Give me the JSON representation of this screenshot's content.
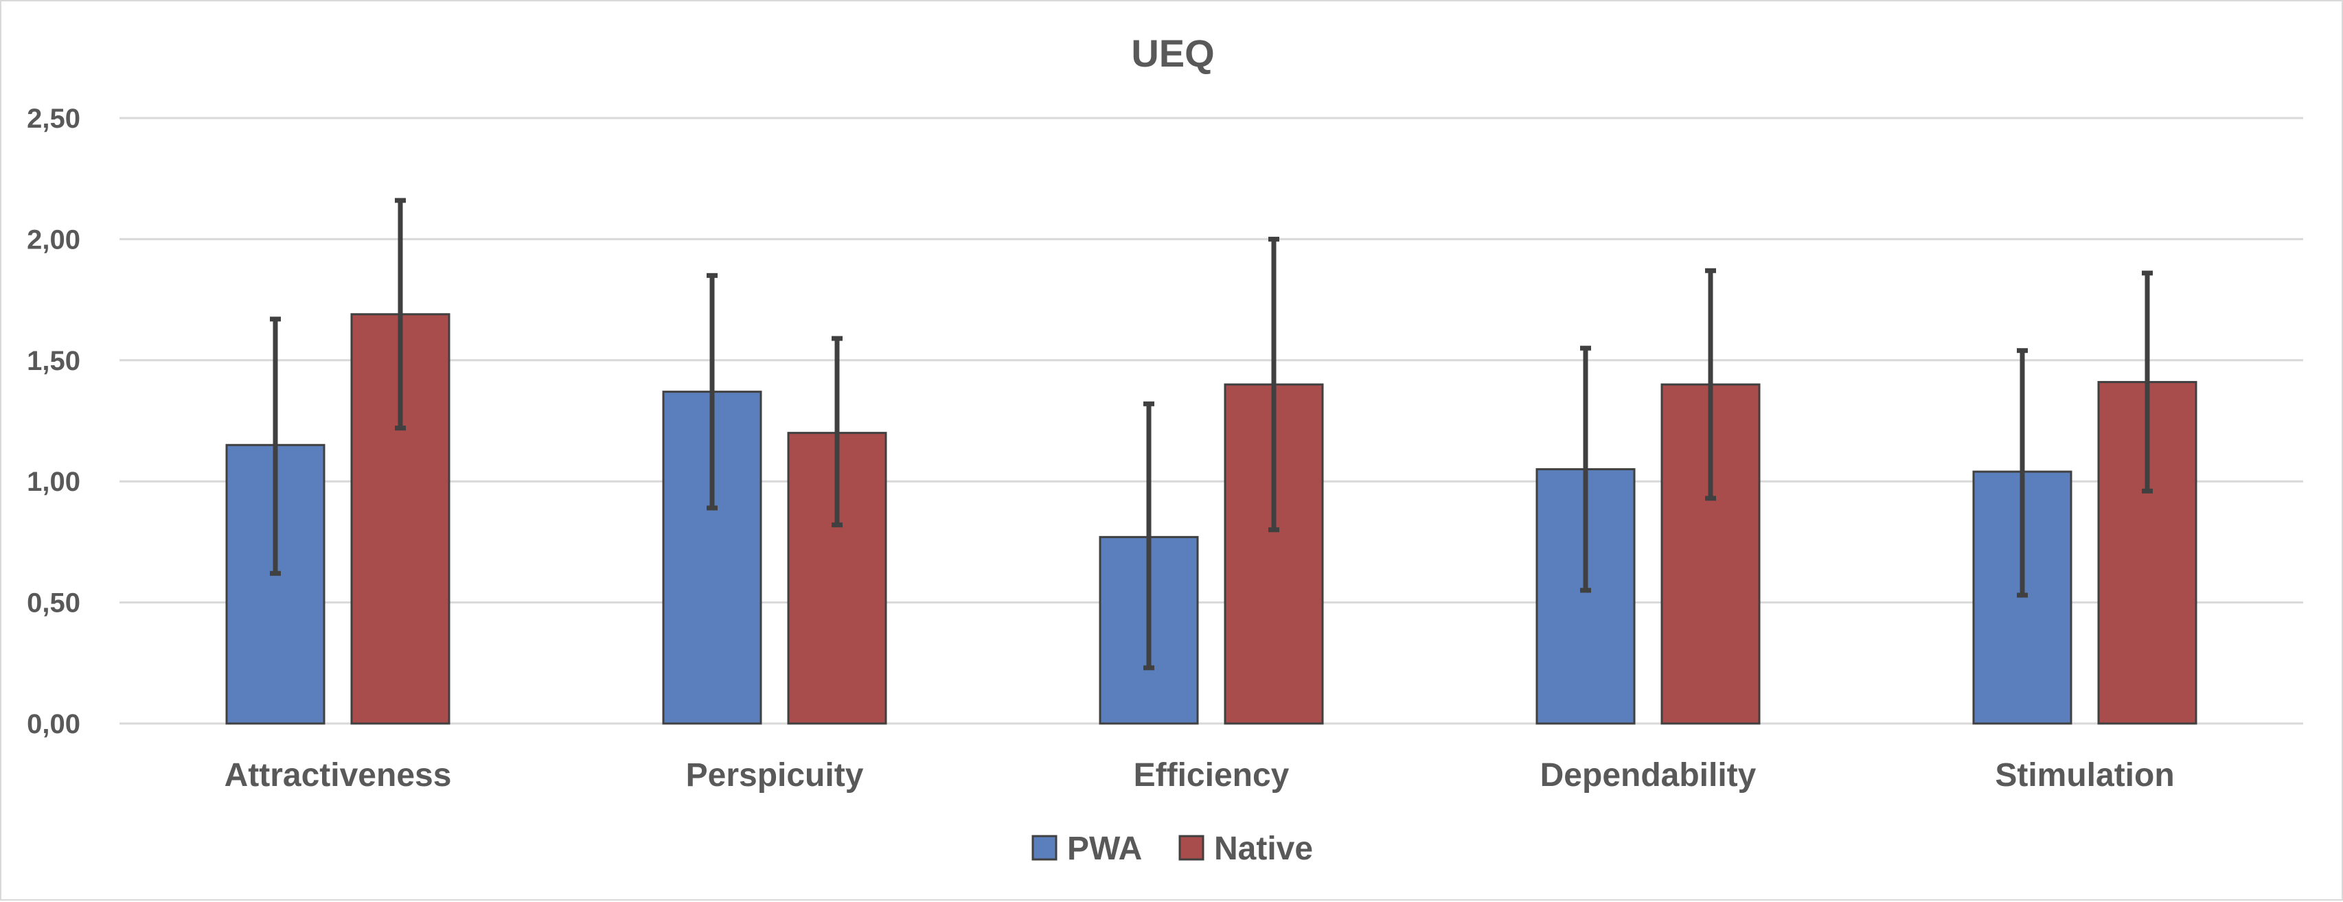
{
  "chart_data": {
    "type": "bar",
    "title": "UEQ",
    "xlabel": "",
    "ylabel": "",
    "categories": [
      "Attractiveness",
      "Perspicuity",
      "Efficiency",
      "Dependability",
      "Stimulation"
    ],
    "y_ticks": [
      "0,00",
      "0,50",
      "1,00",
      "1,50",
      "2,00",
      "2,50"
    ],
    "ylim": [
      0,
      2.5
    ],
    "grid": true,
    "legend_position": "bottom",
    "series": [
      {
        "name": "PWA",
        "color": "#5b7fbd",
        "values": [
          1.15,
          1.37,
          0.77,
          1.05,
          1.04
        ],
        "error_low": [
          0.62,
          0.89,
          0.23,
          0.55,
          0.53
        ],
        "error_high": [
          1.67,
          1.85,
          1.32,
          1.55,
          1.54
        ]
      },
      {
        "name": "Native",
        "color": "#a84c4c",
        "values": [
          1.69,
          1.2,
          1.4,
          1.4,
          1.41
        ],
        "error_low": [
          1.22,
          0.82,
          0.8,
          0.93,
          0.96
        ],
        "error_high": [
          2.16,
          1.59,
          2.0,
          1.87,
          1.86
        ]
      }
    ]
  }
}
